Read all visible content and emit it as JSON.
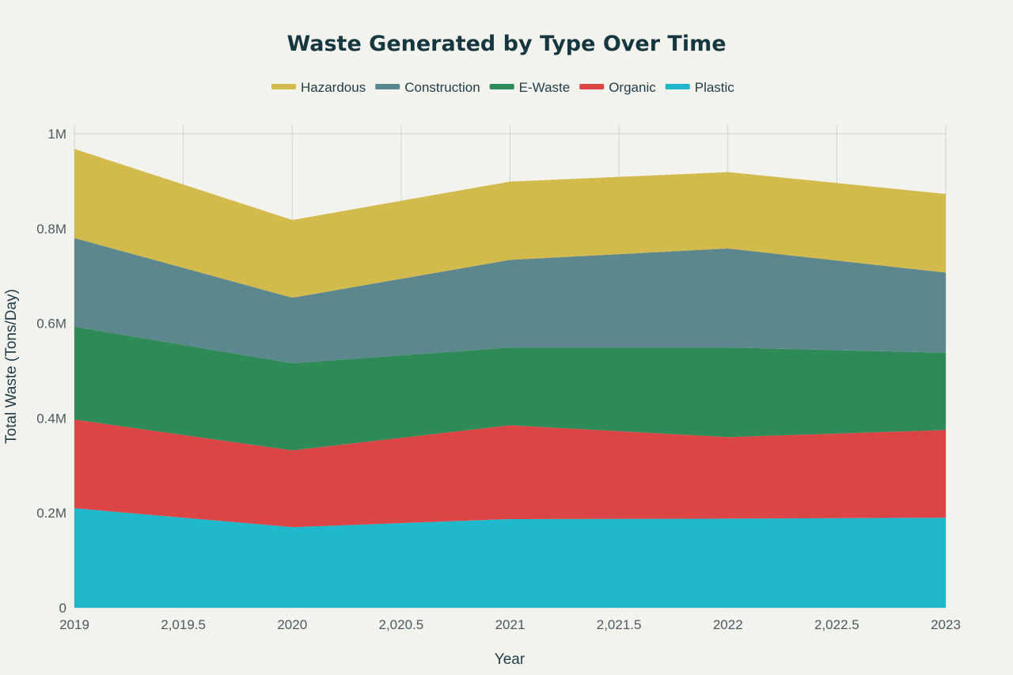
{
  "chart_data": {
    "type": "area",
    "stacked": true,
    "title": "Waste Generated by Type Over Time",
    "xlabel": "Year",
    "ylabel": "Total Waste (Tons/Day)",
    "x": [
      2019,
      2020,
      2021,
      2022,
      2023
    ],
    "xlim": [
      2019,
      2023
    ],
    "ylim": [
      0,
      1000000
    ],
    "x_ticks": [
      "2019",
      "2,019.5",
      "2020",
      "2,020.5",
      "2021",
      "2,021.5",
      "2022",
      "2,022.5",
      "2023"
    ],
    "y_ticks": [
      "0",
      "0.2M",
      "0.4M",
      "0.6M",
      "0.8M",
      "1M"
    ],
    "grid": true,
    "legend_position": "top-center",
    "series": [
      {
        "name": "Plastic",
        "color": "#20b8cc",
        "values": [
          210000,
          170000,
          187000,
          188000,
          190000
        ]
      },
      {
        "name": "Organic",
        "color": "#db4545",
        "values": [
          187000,
          162000,
          198000,
          172000,
          185000
        ]
      },
      {
        "name": "E-Waste",
        "color": "#2e8b57",
        "values": [
          196000,
          184000,
          164000,
          189000,
          163000
        ]
      },
      {
        "name": "Construction",
        "color": "#5d878f",
        "values": [
          187000,
          138000,
          185000,
          209000,
          169000
        ]
      },
      {
        "name": "Hazardous",
        "color": "#d2ba4c",
        "values": [
          188000,
          164000,
          165000,
          161000,
          166000
        ]
      }
    ],
    "legend_order": [
      "Hazardous",
      "Construction",
      "E-Waste",
      "Organic",
      "Plastic"
    ]
  }
}
